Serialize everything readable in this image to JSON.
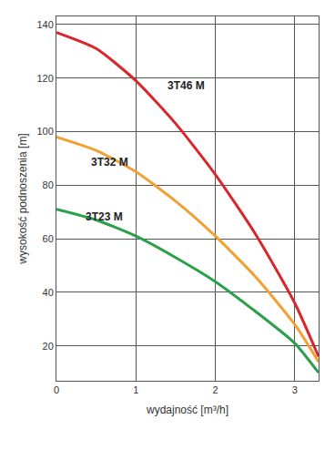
{
  "chart_data": {
    "type": "line",
    "x_label": "wydajność [m³/h]",
    "y_label": "wysokość podnoszenia [m]",
    "x": [
      0,
      0.5,
      1,
      1.5,
      2,
      2.5,
      3,
      3.3
    ],
    "series": [
      {
        "name": "3T46 M",
        "color": "#d9262c",
        "values": [
          137,
          131,
          119,
          103,
          84,
          62,
          36,
          16
        ]
      },
      {
        "name": "3T32 M",
        "color": "#f0a132",
        "values": [
          98,
          93,
          85,
          74,
          61,
          46,
          28,
          14
        ]
      },
      {
        "name": "3T23 M",
        "color": "#2aa04a",
        "values": [
          71,
          67,
          61,
          53,
          44,
          33,
          21,
          10
        ]
      }
    ],
    "xlim": [
      0,
      3.3
    ],
    "ylim": [
      7,
      143
    ],
    "xticks": [
      0,
      1,
      2,
      3
    ],
    "yticks": [
      20,
      40,
      60,
      80,
      100,
      120,
      140
    ],
    "grid": true
  }
}
